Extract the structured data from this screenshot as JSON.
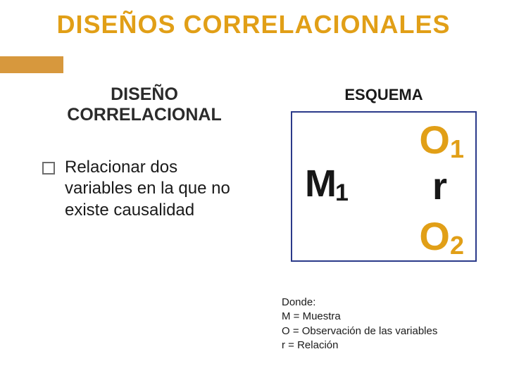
{
  "title": "DISEÑOS CORRELACIONALES",
  "left": {
    "subheading_line1": "DISEÑO",
    "subheading_line2": "CORRELACIONAL",
    "bullet": "Relacionar dos variables en la que no existe causalidad"
  },
  "right": {
    "esquema": "ESQUEMA",
    "m_label": "M",
    "m_sub": "1",
    "o1_label": "O",
    "o1_sub": "1",
    "r_label": "r",
    "o2_label": "O",
    "o2_sub": "2"
  },
  "legend": {
    "donde": "Donde:",
    "m": "M = Muestra",
    "o": "O = Observación de las variables",
    "r": "r = Relación"
  },
  "colors": {
    "accent": "#e19f17",
    "bar": "#d7983d",
    "box_border": "#2b3a8a",
    "text": "#1a1a1a",
    "bg": "#ffffff"
  }
}
